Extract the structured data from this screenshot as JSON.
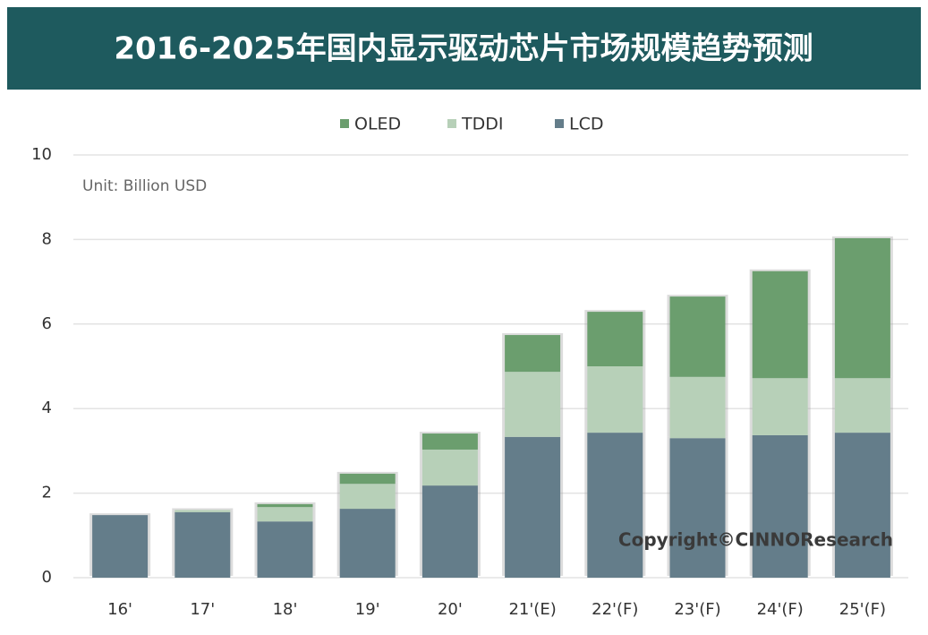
{
  "chart_data": {
    "type": "stacked_bar",
    "title": "2016-2025年国内显示驱动芯片市场规模趋势预测",
    "annotations": [
      "Unit: Billion USD",
      "Copyright©CINNOResearch"
    ],
    "categories": [
      "16'",
      "17'",
      "18'",
      "19'",
      "20'",
      "21'(E)",
      "22'(F)",
      "23'(F)",
      "24'(F)",
      "25'(F)"
    ],
    "series": [
      {
        "name": "LCD",
        "color": "#647d8a",
        "values": [
          1.48,
          1.55,
          1.33,
          1.63,
          2.18,
          3.33,
          3.43,
          3.3,
          3.37,
          3.43
        ]
      },
      {
        "name": "TDDI",
        "color": "#b7d0b8",
        "values": [
          0,
          0.05,
          0.34,
          0.59,
          0.85,
          1.54,
          1.57,
          1.45,
          1.35,
          1.29
        ]
      },
      {
        "name": "OLED",
        "color": "#6b9e6e",
        "values": [
          0,
          0,
          0.07,
          0.24,
          0.38,
          0.87,
          1.29,
          1.9,
          2.53,
          3.31
        ]
      }
    ],
    "ylim": [
      0,
      10
    ],
    "yticks": [
      0,
      2,
      4,
      6,
      8,
      10
    ],
    "grid": true,
    "legend": "top"
  }
}
